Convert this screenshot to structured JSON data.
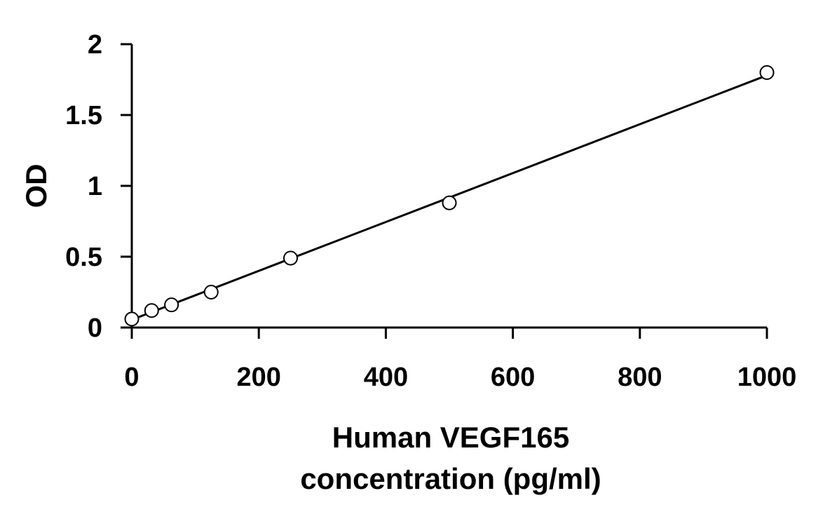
{
  "chart_data": {
    "type": "scatter",
    "title": "",
    "xlabel_lines": [
      "Human VEGF165",
      "concentration (pg/ml)"
    ],
    "ylabel": "OD",
    "xlim": [
      0,
      1000
    ],
    "ylim": [
      0,
      2
    ],
    "x_ticks": [
      0,
      200,
      400,
      600,
      800,
      1000
    ],
    "x_tick_labels": [
      "0",
      "200",
      "400",
      "600",
      "800",
      "1000"
    ],
    "y_ticks": [
      0,
      0.5,
      1,
      1.5,
      2
    ],
    "y_tick_labels": [
      "0",
      "0.5",
      "1",
      "1.5",
      "2"
    ],
    "grid": false,
    "legend": "none",
    "series": [
      {
        "marker": "open-circle",
        "x": [
          0,
          31.25,
          62.5,
          125,
          250,
          500,
          1000
        ],
        "y": [
          0.06,
          0.12,
          0.16,
          0.25,
          0.49,
          0.88,
          1.8
        ]
      }
    ],
    "fit_line": {
      "x": [
        0,
        1000
      ],
      "y": [
        0.055,
        1.78
      ]
    },
    "colors": {
      "axis": "#000000",
      "marker_stroke": "#000000",
      "marker_fill": "#ffffff",
      "line": "#000000"
    }
  }
}
